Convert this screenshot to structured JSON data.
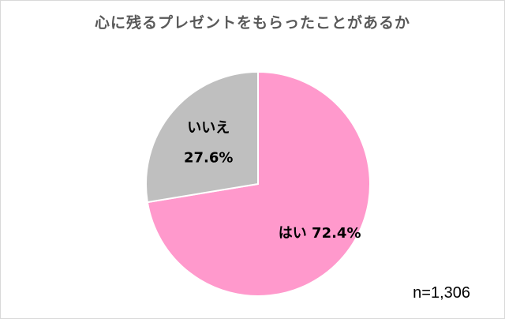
{
  "title": "心に残るプレゼントをもらったことがあるか",
  "note": "n=1,306",
  "colors": {
    "yes": "#ff99cc",
    "no": "#bfbfbf",
    "stroke": "#ffffff"
  },
  "chart_data": {
    "type": "pie",
    "title": "心に残るプレゼントをもらったことがあるか",
    "slices": [
      {
        "label": "はい",
        "value": 72.4,
        "value_label": "72.4%",
        "color": "#ff99cc"
      },
      {
        "label": "いいえ",
        "value": 27.6,
        "value_label": "27.6%",
        "color": "#bfbfbf"
      }
    ],
    "start": "top (12 o'clock), clockwise",
    "n": "n=1,306"
  }
}
